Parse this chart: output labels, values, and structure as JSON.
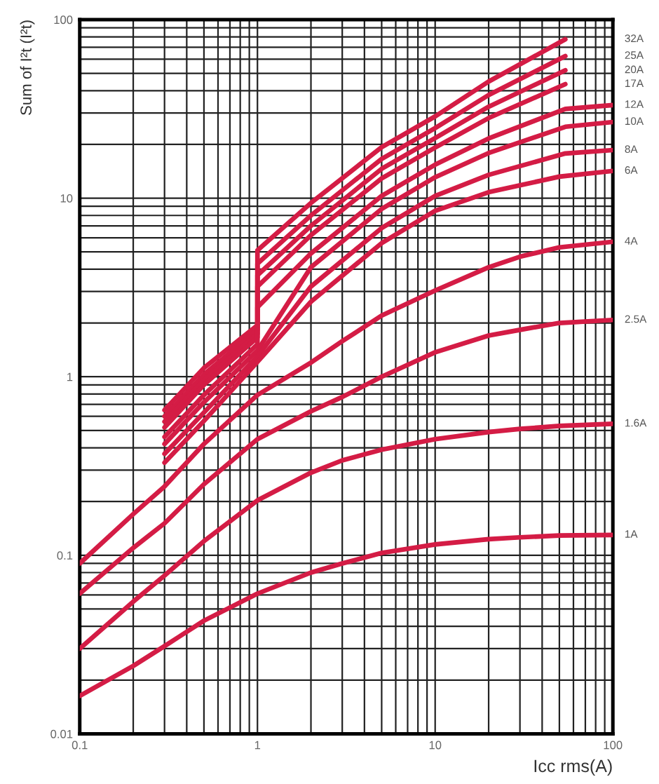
{
  "chart_data": {
    "type": "line",
    "xlabel": "Icc rms(A)",
    "ylabel": "Sum of I²t (I²t)",
    "log": "xy",
    "grid": true,
    "legend": false,
    "marker": "none",
    "line_style": "solid",
    "xlim": [
      0.1,
      100
    ],
    "xticks": [
      0.1,
      1,
      10,
      100
    ],
    "ylim": [
      0.01,
      100
    ],
    "yticks": [
      0.01,
      0.1,
      1,
      10,
      100
    ],
    "series": [
      {
        "name": "32A",
        "color": "#d41c45",
        "x": [
          0.3,
          0.5,
          1,
          1,
          2,
          5,
          10,
          20,
          54
        ],
        "values": [
          0.65,
          1.12,
          1.94,
          5.1,
          9.4,
          19.3,
          28.7,
          45,
          77.6
        ]
      },
      {
        "name": "25A",
        "color": "#d41c45",
        "x": [
          0.3,
          0.5,
          1,
          1,
          2,
          5,
          10,
          20,
          54
        ],
        "values": [
          0.6,
          1.03,
          1.83,
          4.3,
          8.0,
          16.6,
          24.7,
          37.8,
          62.5
        ]
      },
      {
        "name": "20A",
        "color": "#d41c45",
        "x": [
          0.3,
          0.5,
          1,
          1,
          2,
          5,
          10,
          20,
          54
        ],
        "values": [
          0.56,
          0.96,
          1.74,
          3.7,
          7.0,
          14.6,
          21.7,
          32.5,
          52
        ]
      },
      {
        "name": "17A",
        "color": "#d41c45",
        "x": [
          0.3,
          0.5,
          1,
          1,
          2,
          5,
          10,
          20,
          54
        ],
        "values": [
          0.52,
          0.9,
          1.66,
          3.2,
          6.2,
          12.9,
          19.2,
          28.1,
          43.5
        ]
      },
      {
        "name": "12A",
        "color": "#d41c45",
        "x": [
          0.3,
          0.5,
          1,
          1,
          2,
          5,
          10,
          20,
          54,
          100
        ],
        "values": [
          0.46,
          0.79,
          1.52,
          2.45,
          4.9,
          10.3,
          15.4,
          21.6,
          31.6,
          33.2
        ]
      },
      {
        "name": "10A",
        "color": "#d41c45",
        "x": [
          0.3,
          0.5,
          1,
          2,
          5,
          10,
          20,
          54,
          100
        ],
        "values": [
          0.42,
          0.72,
          1.4,
          4.1,
          8.7,
          13.1,
          17.9,
          25.1,
          26.7
        ]
      },
      {
        "name": "8A",
        "color": "#d41c45",
        "x": [
          0.3,
          0.5,
          1,
          2,
          5,
          10,
          20,
          54,
          100
        ],
        "values": [
          0.37,
          0.63,
          1.3,
          3.2,
          6.8,
          10.3,
          13.5,
          17.8,
          18.6
        ]
      },
      {
        "name": "6A",
        "color": "#d41c45",
        "x": [
          0.3,
          0.5,
          1,
          2,
          5,
          10,
          20,
          50,
          100
        ],
        "values": [
          0.33,
          0.565,
          1.21,
          2.63,
          5.6,
          8.5,
          10.8,
          13.2,
          14.2
        ]
      },
      {
        "name": "4A",
        "color": "#d41c45",
        "x": [
          0.1,
          0.2,
          0.3,
          0.5,
          1,
          2,
          3,
          5,
          10,
          20,
          30,
          50,
          100
        ],
        "values": [
          0.09,
          0.17,
          0.243,
          0.42,
          0.79,
          1.2,
          1.58,
          2.2,
          3.04,
          4.1,
          4.7,
          5.3,
          5.7
        ]
      },
      {
        "name": "2.5A",
        "color": "#d41c45",
        "x": [
          0.1,
          0.2,
          0.3,
          0.5,
          1,
          2,
          3,
          5,
          10,
          20,
          30,
          50,
          100
        ],
        "values": [
          0.061,
          0.11,
          0.151,
          0.25,
          0.447,
          0.64,
          0.77,
          1.0,
          1.37,
          1.7,
          1.83,
          2.0,
          2.08
        ]
      },
      {
        "name": "1.6A",
        "color": "#d41c45",
        "x": [
          0.1,
          0.2,
          0.3,
          0.5,
          1,
          2,
          3,
          5,
          10,
          20,
          30,
          50,
          100
        ],
        "values": [
          0.03,
          0.055,
          0.077,
          0.12,
          0.203,
          0.29,
          0.34,
          0.39,
          0.447,
          0.49,
          0.51,
          0.53,
          0.545
        ]
      },
      {
        "name": "1A",
        "color": "#d41c45",
        "x": [
          0.1,
          0.2,
          0.3,
          0.5,
          1,
          2,
          3,
          5,
          10,
          20,
          30,
          50,
          100
        ],
        "values": [
          0.0163,
          0.024,
          0.031,
          0.043,
          0.061,
          0.08,
          0.09,
          0.103,
          0.115,
          0.123,
          0.126,
          0.129,
          0.13
        ]
      }
    ]
  }
}
